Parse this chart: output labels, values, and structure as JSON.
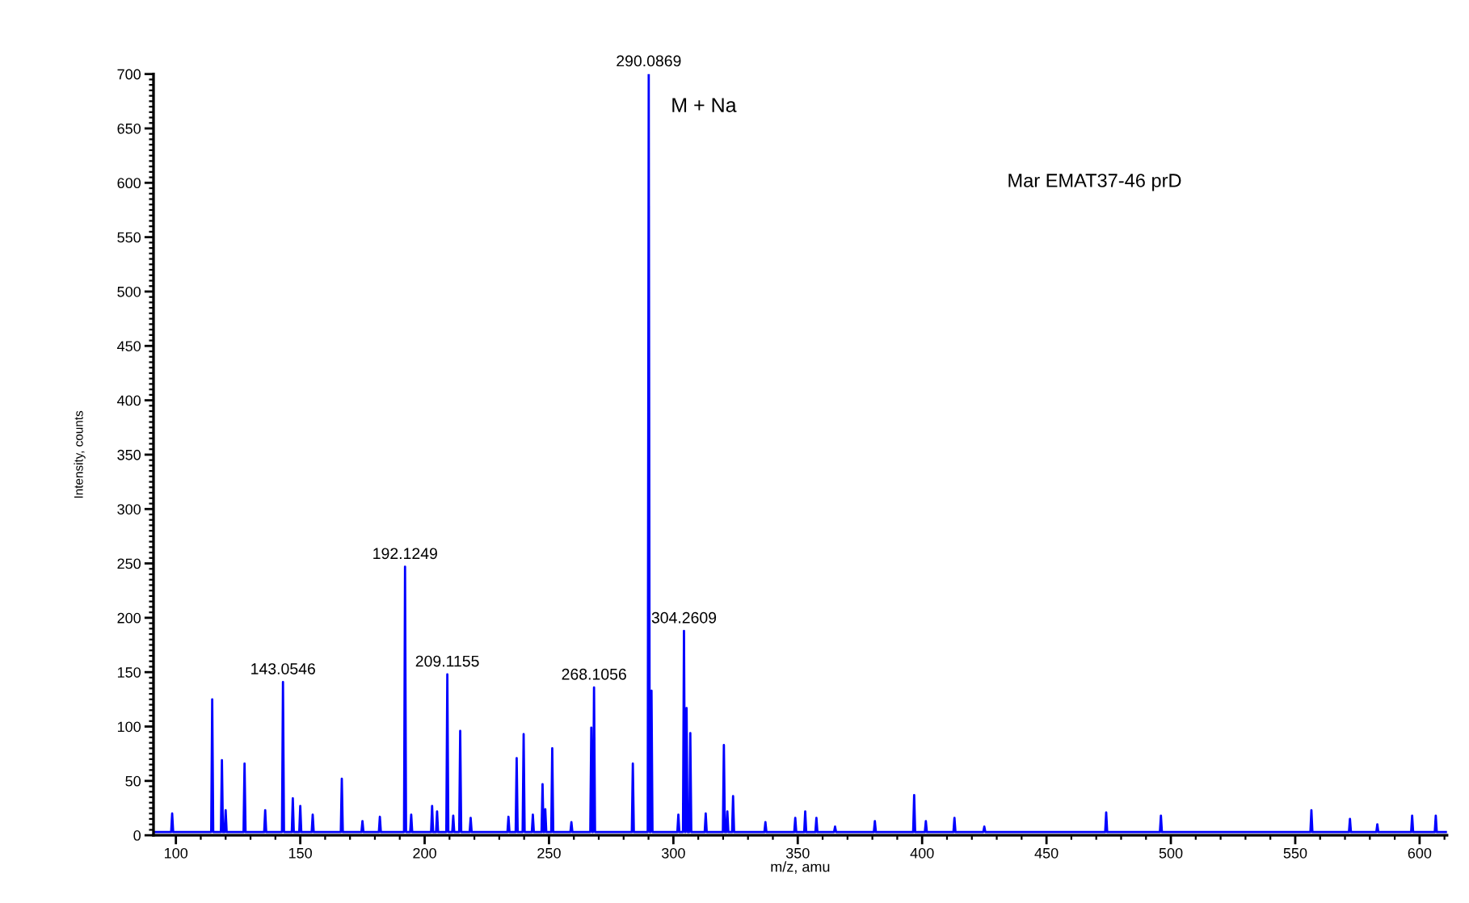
{
  "chart_data": {
    "type": "line",
    "xlabel": "m/z, amu",
    "ylabel": "Intensity, counts",
    "xlim": [
      91,
      611
    ],
    "ylim": [
      0,
      700
    ],
    "xticks": [
      100,
      150,
      200,
      250,
      300,
      350,
      400,
      450,
      500,
      550,
      600
    ],
    "yticks": [
      0,
      50,
      100,
      150,
      200,
      250,
      300,
      350,
      400,
      450,
      500,
      550,
      600,
      650,
      700
    ],
    "grid": false,
    "legend": false,
    "marker": "none",
    "line_style": "solid",
    "series": [
      {
        "color": "#0000ff",
        "x": [
          91,
          98.1,
          98.5,
          98.9,
          114.2,
          114.6,
          115.0,
          118.1,
          118.5,
          118.9,
          119.6,
          120,
          120.4,
          127.2,
          127.6,
          128.0,
          135.5,
          135.9,
          136.3,
          142.65,
          143.05,
          143.45,
          146.6,
          147,
          147.4,
          149.6,
          150,
          150.4,
          154.6,
          155,
          155.4,
          166.3,
          166.7,
          167.1,
          174.6,
          175,
          175.4,
          181.6,
          182,
          182.4,
          191.72,
          192.12,
          192.52,
          194.2,
          194.6,
          195.0,
          202.6,
          203,
          203.4,
          204.6,
          205,
          205.4,
          208.72,
          209.12,
          209.52,
          211.1,
          211.5,
          211.9,
          213.9,
          214.3,
          214.7,
          218.1,
          218.5,
          218.9,
          233.3,
          233.7,
          234.1,
          236.6,
          237,
          237.4,
          239.4,
          239.8,
          240.2,
          243.1,
          243.5,
          243.9,
          247.0,
          247.4,
          247.8,
          248.1,
          248.5,
          248.9,
          250.9,
          251.3,
          251.7,
          258.6,
          259,
          259.4,
          266.6,
          267,
          267.4,
          267.7,
          268.1,
          268.5,
          283.3,
          283.7,
          284.1,
          289.69,
          290.09,
          290.49,
          290.8,
          291.2,
          291.6,
          301.6,
          302,
          302.4,
          303.86,
          304.26,
          304.66,
          304.9,
          305.3,
          305.7,
          306.4,
          306.8,
          307.2,
          312.6,
          313,
          313.4,
          319.9,
          320.3,
          320.7,
          321.3,
          321.7,
          322.1,
          323.6,
          324,
          324.4,
          336.6,
          337,
          337.4,
          348.6,
          349,
          349.4,
          352.6,
          353,
          353.4,
          357.1,
          357.5,
          357.9,
          364.6,
          365,
          365.4,
          380.6,
          381,
          381.4,
          396.4,
          396.8,
          397.2,
          401.1,
          401.5,
          401.9,
          412.6,
          413,
          413.4,
          424.6,
          425,
          425.4,
          473.6,
          474,
          474.4,
          495.6,
          496,
          496.4,
          556.1,
          556.5,
          556.9,
          571.6,
          572,
          572.4,
          582.6,
          583,
          583.4,
          596.6,
          597,
          597.4,
          606.1,
          606.5,
          606.9,
          611
        ],
        "values": [
          3,
          3,
          20,
          3,
          3,
          125,
          3,
          3,
          69,
          3,
          3,
          23,
          3,
          3,
          66,
          3,
          3,
          23,
          3,
          3,
          141,
          3,
          3,
          34,
          3,
          3,
          27,
          3,
          3,
          19,
          3,
          3,
          52,
          3,
          3,
          13,
          3,
          3,
          17,
          3,
          3,
          247,
          3,
          3,
          19,
          3,
          3,
          27,
          3,
          3,
          22,
          3,
          3,
          148,
          3,
          3,
          18,
          3,
          3,
          96,
          3,
          3,
          16,
          3,
          3,
          17,
          3,
          3,
          71,
          3,
          3,
          93,
          3,
          3,
          19,
          3,
          3,
          47,
          3,
          3,
          24,
          3,
          3,
          80,
          3,
          3,
          12,
          3,
          3,
          99,
          3,
          3,
          136,
          3,
          3,
          66,
          3,
          3,
          700,
          3,
          3,
          133,
          3,
          3,
          19,
          3,
          3,
          188,
          3,
          3,
          117,
          3,
          3,
          94,
          3,
          3,
          20,
          3,
          3,
          83,
          3,
          3,
          22,
          3,
          3,
          36,
          3,
          3,
          12,
          3,
          3,
          16,
          3,
          3,
          22,
          3,
          3,
          16,
          3,
          3,
          8,
          3,
          3,
          13,
          3,
          3,
          37,
          3,
          3,
          13,
          3,
          3,
          16,
          3,
          3,
          8,
          3,
          3,
          21,
          3,
          3,
          18,
          3,
          3,
          23,
          3,
          3,
          15,
          3,
          3,
          10,
          3,
          3,
          18,
          3,
          3,
          18,
          3,
          3
        ]
      }
    ],
    "annotations": [
      {
        "text": "290.0869",
        "x": 290.0869,
        "y": 700
      },
      {
        "text": "192.1249",
        "x": 192.1249,
        "y": 247
      },
      {
        "text": "143.0546",
        "x": 143.0546,
        "y": 141
      },
      {
        "text": "209.1155",
        "x": 209.1155,
        "y": 148
      },
      {
        "text": "268.1056",
        "x": 268.1056,
        "y": 136
      },
      {
        "text": "304.2609",
        "x": 304.2609,
        "y": 188
      },
      "M + Na",
      "Mar EMAT37-46 prD"
    ]
  }
}
